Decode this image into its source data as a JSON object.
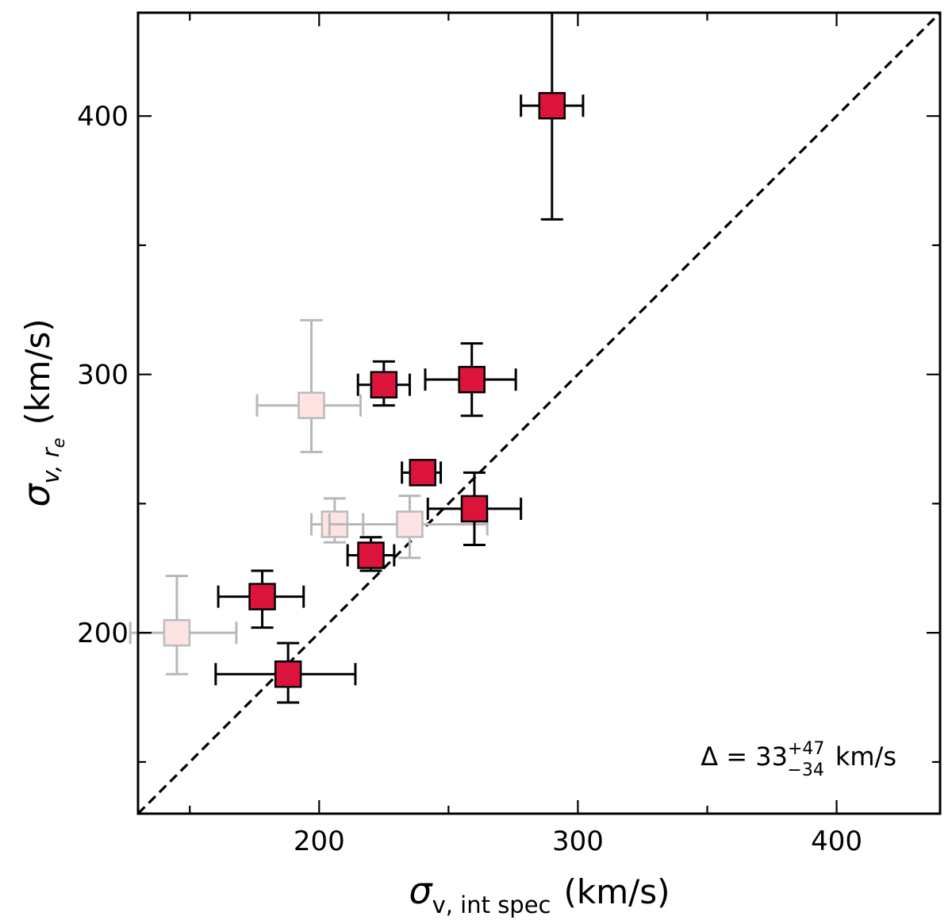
{
  "chart_data": {
    "type": "scatter",
    "title": "",
    "xlabel": {
      "symbol": "σ",
      "sub": "v, int spec",
      "unit": "(km/s)"
    },
    "ylabel": {
      "symbol": "σ",
      "sub": "v, r",
      "subsub": "e",
      "unit": "(km/s)"
    },
    "xlim": [
      130,
      440
    ],
    "ylim": [
      130,
      440
    ],
    "x_major_ticks": [
      200,
      300,
      400
    ],
    "x_major_tick_labels": [
      "200",
      "300",
      "400"
    ],
    "x_minor_ticks": [
      150,
      250,
      350
    ],
    "y_major_ticks": [
      200,
      300,
      400
    ],
    "y_major_tick_labels": [
      "200",
      "300",
      "400"
    ],
    "y_minor_ticks": [
      150,
      250,
      350
    ],
    "grid": false,
    "reference_line": {
      "name": "one-to-one",
      "style": "dashed",
      "color": "#000000"
    },
    "annotation": {
      "prefix": "Δ = 33",
      "sup": "+47",
      "sub": "−34",
      "suffix": "km/s"
    },
    "series": [
      {
        "name": "primary",
        "marker": "square",
        "color": "#dc143c",
        "edge": "#000000",
        "errcolor": "#000000",
        "points": [
          {
            "x": 290,
            "y": 404,
            "xerr": [
              12,
              12
            ],
            "yerr": [
              44,
              36
            ]
          },
          {
            "x": 225,
            "y": 296,
            "xerr": [
              10,
              10
            ],
            "yerr": [
              8,
              9
            ]
          },
          {
            "x": 259,
            "y": 298,
            "xerr": [
              18,
              17
            ],
            "yerr": [
              14,
              14
            ]
          },
          {
            "x": 240,
            "y": 262,
            "xerr": [
              8,
              7
            ],
            "yerr": [
              4,
              4
            ]
          },
          {
            "x": 260,
            "y": 248,
            "xerr": [
              18,
              18
            ],
            "yerr": [
              14,
              14
            ]
          },
          {
            "x": 220,
            "y": 230,
            "xerr": [
              9,
              9
            ],
            "yerr": [
              6,
              7
            ]
          },
          {
            "x": 178,
            "y": 214,
            "xerr": [
              17,
              16
            ],
            "yerr": [
              12,
              10
            ]
          },
          {
            "x": 188,
            "y": 184,
            "xerr": [
              28,
              26
            ],
            "yerr": [
              11,
              12
            ]
          }
        ]
      },
      {
        "name": "secondary",
        "marker": "square",
        "color": "#fde3e1",
        "edge": "#bbbbbb",
        "errcolor": "#b8b8b8",
        "points": [
          {
            "x": 197,
            "y": 288,
            "xerr": [
              21,
              19
            ],
            "yerr": [
              18,
              33
            ]
          },
          {
            "x": 206,
            "y": 242,
            "xerr": [
              9,
              11
            ],
            "yerr": [
              7,
              10
            ]
          },
          {
            "x": 235,
            "y": 242,
            "xerr": [
              31,
              30
            ],
            "yerr": [
              13,
              11
            ]
          },
          {
            "x": 145,
            "y": 200,
            "xerr": [
              18,
              23
            ],
            "yerr": [
              16,
              22
            ]
          }
        ]
      }
    ]
  }
}
